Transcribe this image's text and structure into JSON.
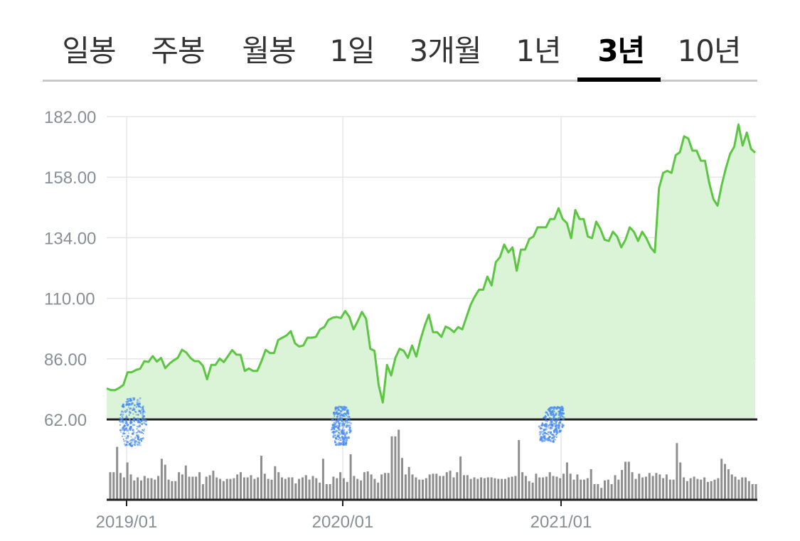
{
  "tabs": [
    {
      "label": "일봉",
      "active": false
    },
    {
      "label": "주봉",
      "active": false
    },
    {
      "label": "월봉",
      "active": false
    },
    {
      "label": "1일",
      "active": false
    },
    {
      "label": "3개월",
      "active": false
    },
    {
      "label": "1년",
      "active": false
    },
    {
      "label": "3년",
      "active": true
    },
    {
      "label": "10년",
      "active": false
    }
  ],
  "colors": {
    "line": "#5cc642",
    "area": "#dbf4d8",
    "grid": "#e6e6e6",
    "baseline": "#222222",
    "volume": "#8e8e8e",
    "markers": "#4a8cf0",
    "tick_text": "#888e96"
  },
  "chart_data": {
    "type": "area",
    "x_ticks": [
      "2019/01",
      "2020/01",
      "2021/01"
    ],
    "y_ticks": [
      "182.00",
      "158.00",
      "134.00",
      "110.00",
      "86.00",
      "62.00"
    ],
    "ylim": [
      62,
      182
    ],
    "grid": true,
    "event_markers_at": [
      "2019/01",
      "2020/01",
      "2021/01"
    ],
    "price_series": {
      "x_start": "2018/11",
      "x_end": "2021/10",
      "values": [
        74.3,
        73.6,
        73.6,
        74.5,
        75.7,
        80.7,
        80.7,
        81.6,
        82.1,
        85.1,
        84.8,
        87.1,
        84.9,
        86.4,
        82.3,
        84.1,
        85.4,
        86.4,
        89.6,
        88.6,
        86.4,
        85.1,
        85.1,
        83.3,
        77.9,
        83.6,
        83.6,
        86.1,
        84.7,
        87.1,
        89.5,
        87.7,
        87.6,
        81.2,
        82.2,
        81.2,
        81.2,
        85.1,
        89.6,
        88.3,
        88.3,
        93.5,
        94.4,
        95.3,
        97.0,
        92.2,
        90.9,
        91.3,
        94.4,
        94.4,
        94.7,
        97.7,
        98.6,
        101.4,
        102.3,
        102.6,
        102.2,
        105.0,
        102.6,
        97.7,
        100.9,
        104.6,
        101.9,
        90.0,
        89.2,
        75.6,
        68.7,
        83.6,
        79.4,
        86.4,
        90.0,
        89.2,
        86.4,
        91.3,
        86.9,
        93.6,
        99.1,
        103.5,
        96.6,
        96.6,
        94.7,
        98.8,
        98.0,
        96.6,
        98.6,
        97.7,
        102.6,
        107.5,
        110.8,
        113.4,
        113.4,
        118.6,
        115.1,
        124.3,
        126.3,
        131.3,
        128.2,
        130.2,
        120.9,
        129.3,
        129.3,
        133.5,
        134.5,
        138.1,
        138.1,
        138.1,
        141.4,
        141.4,
        145.7,
        141.4,
        139.8,
        133.8,
        145.0,
        141.4,
        141.4,
        134.5,
        133.8,
        140.4,
        137.5,
        133.2,
        132.7,
        136.4,
        134.5,
        130.2,
        133.2,
        138.1,
        136.4,
        132.7,
        136.4,
        133.8,
        130.2,
        128.2,
        153.6,
        159.7,
        160.5,
        159.7,
        166.7,
        167.9,
        174.2,
        173.3,
        168.5,
        168.5,
        164.5,
        164.5,
        155.8,
        149.3,
        146.7,
        154.9,
        161.6,
        167.2,
        170.1,
        178.9,
        170.5,
        175.7,
        169.2,
        167.7
      ]
    },
    "volume_series": {
      "values": [
        36,
        36,
        70,
        35,
        29,
        49,
        33,
        25,
        29,
        25,
        31,
        28,
        28,
        26,
        31,
        54,
        46,
        26,
        24,
        24,
        36,
        33,
        45,
        30,
        30,
        30,
        36,
        20,
        30,
        32,
        38,
        29,
        27,
        24,
        27,
        27,
        28,
        33,
        36,
        29,
        29,
        32,
        27,
        29,
        58,
        34,
        27,
        26,
        44,
        36,
        29,
        27,
        29,
        29,
        21,
        27,
        29,
        32,
        26,
        31,
        28,
        22,
        54,
        20,
        20,
        30,
        28,
        36,
        28,
        23,
        60,
        31,
        27,
        25,
        36,
        37,
        33,
        27,
        22,
        33,
        35,
        35,
        84,
        84,
        93,
        55,
        33,
        43,
        33,
        29,
        26,
        26,
        28,
        33,
        34,
        34,
        31,
        31,
        36,
        38,
        29,
        36,
        57,
        32,
        32,
        27,
        29,
        27,
        29,
        28,
        29,
        29,
        28,
        27,
        27,
        27,
        29,
        30,
        31,
        79,
        36,
        31,
        24,
        22,
        34,
        29,
        29,
        30,
        36,
        31,
        30,
        28,
        34,
        49,
        34,
        26,
        33,
        26,
        26,
        28,
        40,
        20,
        20,
        15,
        25,
        26,
        20,
        32,
        26,
        39,
        50,
        50,
        36,
        27,
        34,
        29,
        30,
        35,
        31,
        35,
        33,
        28,
        33,
        26,
        26,
        75,
        49,
        29,
        24,
        28,
        30,
        27,
        26,
        29,
        23,
        24,
        26,
        28,
        54,
        47,
        40,
        33,
        30,
        26,
        29,
        29,
        24,
        20,
        20
      ]
    }
  }
}
